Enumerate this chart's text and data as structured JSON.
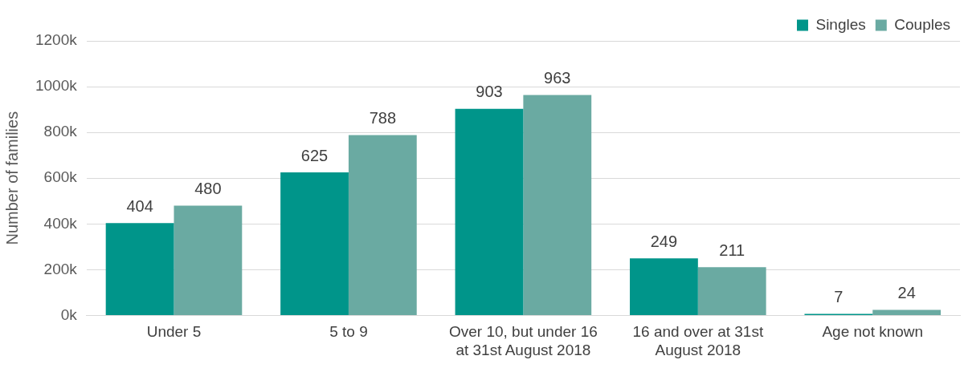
{
  "chart_data": {
    "type": "bar",
    "ylabel": "Number of families",
    "categories": [
      "Under 5",
      "5 to 9",
      "Over 10, but under 16 at 31st August 2018",
      "16 and over at 31st August 2018",
      "Age not known"
    ],
    "series": [
      {
        "name": "Singles",
        "color": "#00958a",
        "values": [
          404,
          625,
          903,
          249,
          7
        ]
      },
      {
        "name": "Couples",
        "color": "#6aaaa2",
        "values": [
          480,
          788,
          963,
          211,
          24
        ]
      }
    ],
    "ylim": [
      0,
      1200
    ],
    "yticks": [
      {
        "value": 0,
        "label": "0k"
      },
      {
        "value": 200,
        "label": "200k"
      },
      {
        "value": 400,
        "label": "400k"
      },
      {
        "value": 600,
        "label": "600k"
      },
      {
        "value": 800,
        "label": "800k"
      },
      {
        "value": 1000,
        "label": "1000k"
      },
      {
        "value": 1200,
        "label": "1200k"
      }
    ],
    "grid": "y",
    "legend": "top right",
    "data_labels": true
  }
}
